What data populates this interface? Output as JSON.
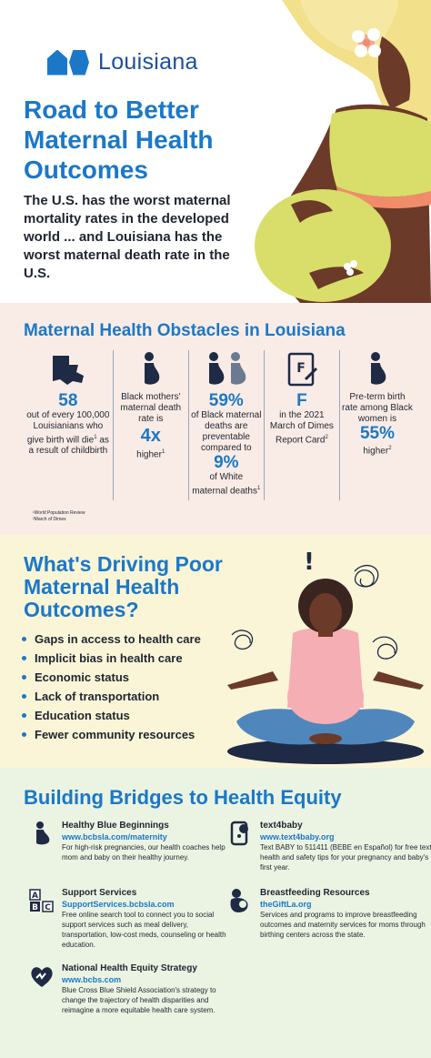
{
  "brand": {
    "logo_text": "Louisiana",
    "color_primary": "#1b78c8"
  },
  "hero": {
    "title": "Road to Better Maternal Health Outcomes",
    "subtitle": "The U.S. has the worst maternal mortality rates in the developed world ... and Louisiana has the worst maternal death rate in the U.S."
  },
  "obstacles": {
    "title": "Maternal Health Obstacles in Louisiana",
    "items": [
      {
        "icon": "louisiana-map-icon",
        "big": "58",
        "text": "out of every 100,000 Louisianians who give birth will die",
        "sup": "1",
        "text2": "as a result of childbirth"
      },
      {
        "icon": "pregnant-silhouette-icon",
        "text": "Black mothers' maternal death rate is",
        "big": "4x",
        "text2": "higher",
        "sup": "1"
      },
      {
        "icon": "two-pregnant-silhouettes-icon",
        "big": "59%",
        "text": "of Black maternal deaths are preventable compared to",
        "big2": "9%",
        "text2": "of White maternal deaths",
        "sup": "1"
      },
      {
        "icon": "report-card-icon",
        "big": "F",
        "text": "in the 2021 March of Dimes Report Card",
        "sup": "2"
      },
      {
        "icon": "pregnant-silhouette-icon",
        "text": "Pre-term birth rate among Black women is",
        "big": "55%",
        "text2": "higher",
        "sup": "2"
      }
    ],
    "footnotes": [
      "¹World Population Review",
      "²March of Dimes"
    ]
  },
  "driving": {
    "title": "What's Driving Poor Maternal Health Outcomes?",
    "bullets": [
      "Gaps in access to health care",
      "Implicit bias in health care",
      "Economic status",
      "Lack of transportation",
      "Education status",
      "Fewer community resources"
    ]
  },
  "bridges": {
    "title": "Building Bridges to Health Equity",
    "items": [
      {
        "icon": "pregnant-woman-icon",
        "name": "Healthy Blue Beginnings",
        "link": "www.bcbsla.com/maternity",
        "desc": "For high-risk pregnancies, our health coaches help mom and baby on their healthy journey."
      },
      {
        "icon": "phone-text-icon",
        "name": "text4baby",
        "link": "www.text4baby.org",
        "desc": "Text BABY to 511411 (BEBE en Español) for free text health and safety tips for your pregnancy and baby's first year."
      },
      {
        "icon": "abc-blocks-icon",
        "name": "Support Services",
        "link": "SupportServices.bcbsla.com",
        "desc": "Free online search tool to connect you to social support services such as meal delivery, transportation, low-cost meds, counseling or health education."
      },
      {
        "icon": "breastfeeding-icon",
        "name": "Breastfeeding Resources",
        "link": "theGiftLa.org",
        "desc": "Services and programs to improve breastfeeding outcomes and maternity services for moms through birthing centers across the state."
      },
      {
        "icon": "heart-hand-icon",
        "name": "National Health Equity Strategy",
        "link": "www.bcbs.com",
        "desc": "Blue Cross Blue Shield Association's strategy to change the trajectory of health disparities and reimagine a more equitable health care system."
      }
    ]
  }
}
